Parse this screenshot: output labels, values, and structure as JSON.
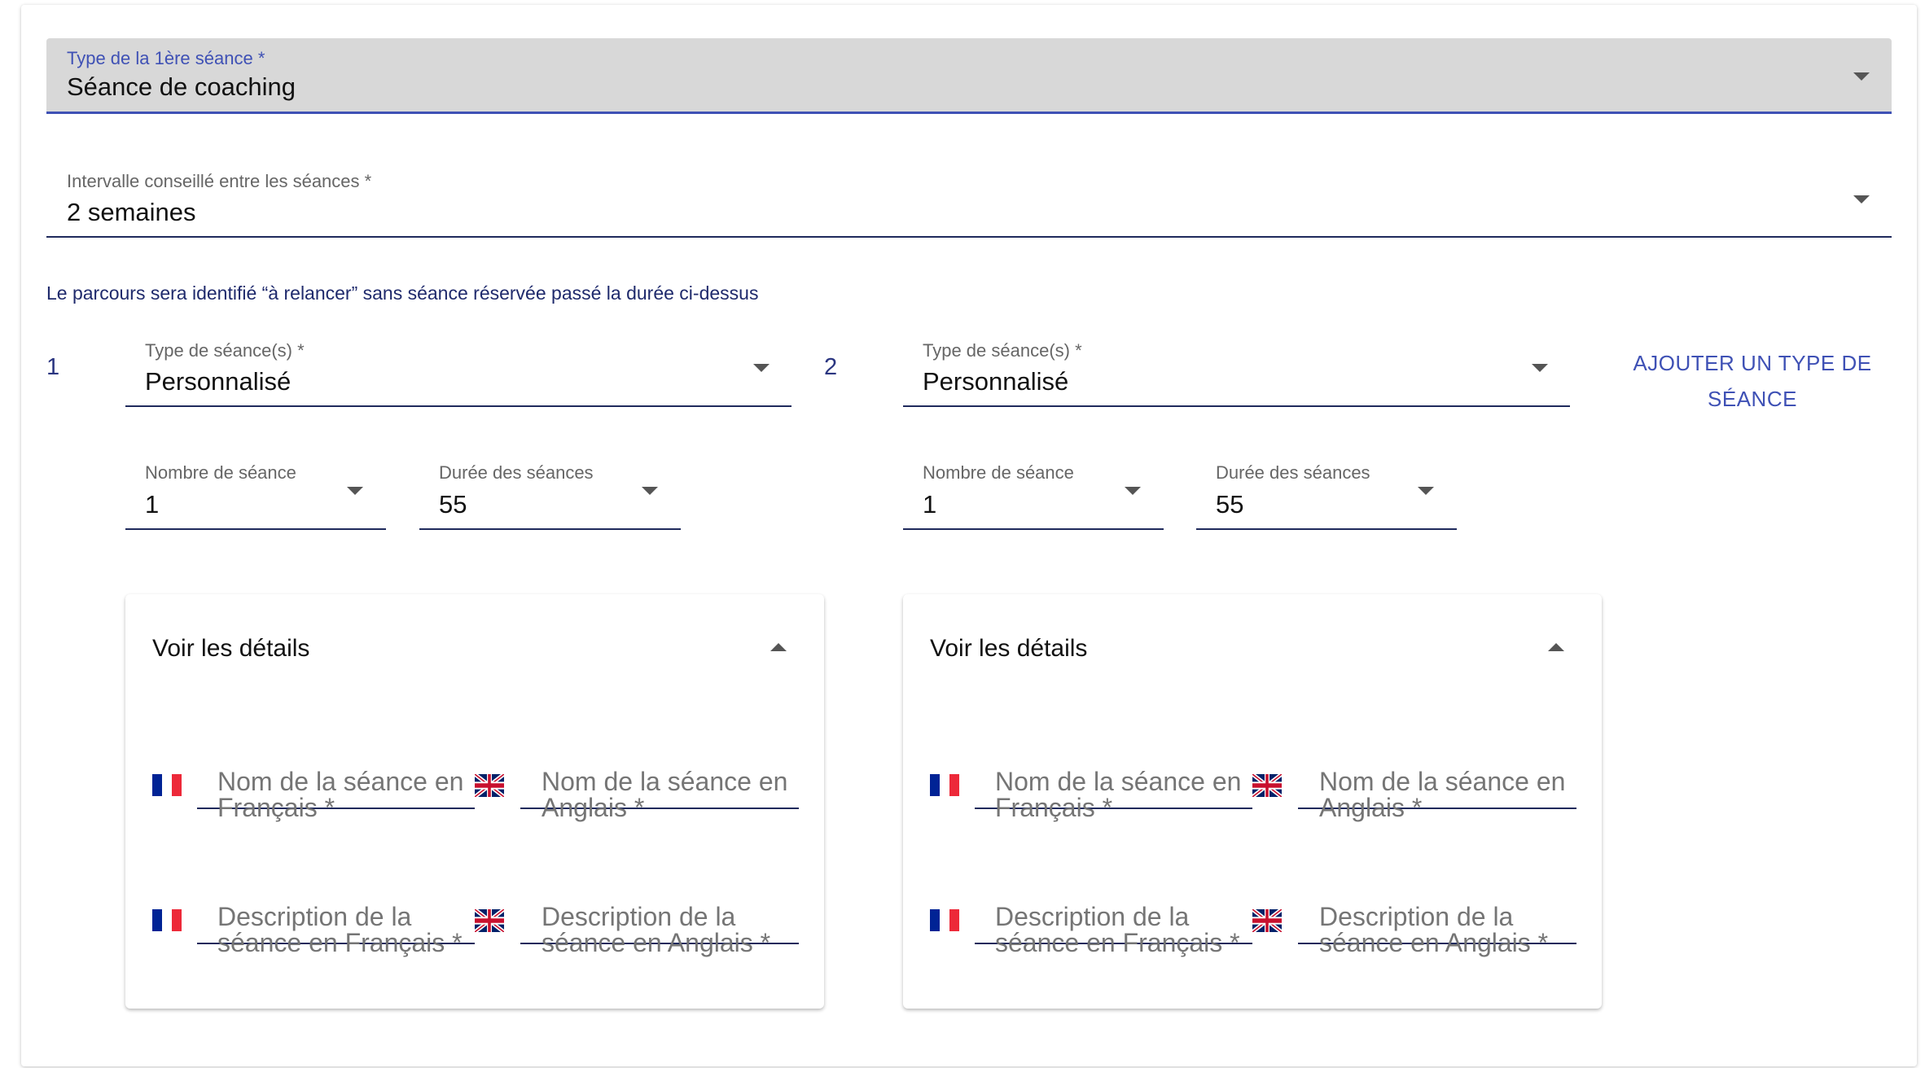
{
  "first_session": {
    "label": "Type de la 1ère séance *",
    "value": "Séance de coaching"
  },
  "interval": {
    "label": "Intervalle conseillé entre les séances *",
    "value": "2 semaines"
  },
  "helper_text": "Le parcours sera identifié “à relancer” sans séance réservée passé la durée ci-dessus",
  "add_type_button": {
    "line1": "AJOUTER UN TYPE DE",
    "line2": "SÉANCE"
  },
  "colors": {
    "accent": "#3f51b5",
    "navy": "#1f2a5c",
    "filled_bg": "#d8d8d8"
  },
  "session_types": [
    {
      "index": "1",
      "type_label": "Type de séance(s) *",
      "type_value": "Personnalisé",
      "count_label": "Nombre de séance",
      "count_value": "1",
      "duration_label": "Durée des séances",
      "duration_value": "55",
      "details": {
        "title": "Voir les détails",
        "name_fr": [
          "Nom de la séance en",
          "Français *"
        ],
        "name_en": [
          "Nom de la séance en",
          "Anglais *"
        ],
        "desc_fr": [
          "Description de la",
          "séance en Français *"
        ],
        "desc_en": [
          "Description de la",
          "séance en Anglais *"
        ]
      }
    },
    {
      "index": "2",
      "type_label": "Type de séance(s) *",
      "type_value": "Personnalisé",
      "count_label": "Nombre de séance",
      "count_value": "1",
      "duration_label": "Durée des séances",
      "duration_value": "55",
      "details": {
        "title": "Voir les détails",
        "name_fr": [
          "Nom de la séance en",
          "Français *"
        ],
        "name_en": [
          "Nom de la séance en",
          "Anglais *"
        ],
        "desc_fr": [
          "Description de la",
          "séance en Français *"
        ],
        "desc_en": [
          "Description de la",
          "séance en Anglais *"
        ]
      }
    }
  ]
}
